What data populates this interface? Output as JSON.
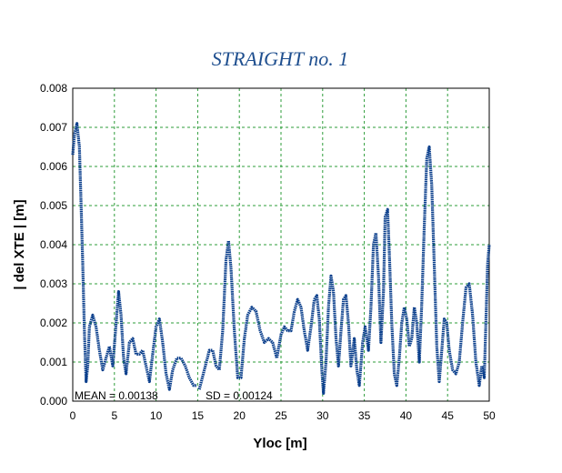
{
  "chart_data": {
    "type": "line",
    "title": "STRAIGHT no. 1",
    "xlabel": "Yloc [m]",
    "ylabel": "| del XTE | [m]",
    "xlim": [
      0,
      50
    ],
    "ylim": [
      0,
      0.008
    ],
    "x_ticks": [
      "0",
      "5",
      "10",
      "15",
      "20",
      "25",
      "30",
      "35",
      "40",
      "45",
      "50"
    ],
    "y_ticks": [
      "0.000",
      "0.001",
      "0.002",
      "0.003",
      "0.004",
      "0.005",
      "0.006",
      "0.007",
      "0.008"
    ],
    "grid": true,
    "line_color": "#0b3f8c",
    "grid_color": "#2e9c3a",
    "title_color": "#1f4f8f",
    "annotations": {
      "mean": "MEAN =  0.00138",
      "sd": "SD = 0.00124"
    },
    "series": [
      {
        "segments": [
          [
            [
              0.0,
              0.0063
            ],
            [
              0.2,
              0.0068
            ],
            [
              0.5,
              0.0071
            ],
            [
              0.8,
              0.0065
            ],
            [
              1.0,
              0.005
            ],
            [
              1.2,
              0.0035
            ],
            [
              1.4,
              0.0018
            ],
            [
              1.6,
              0.0005
            ],
            [
              1.8,
              0.0009
            ],
            [
              2.0,
              0.0019
            ],
            [
              2.4,
              0.0022
            ],
            [
              2.8,
              0.0019
            ],
            [
              3.2,
              0.0013
            ],
            [
              3.6,
              0.0008
            ],
            [
              4.0,
              0.0011
            ],
            [
              4.4,
              0.0014
            ],
            [
              4.8,
              0.0009
            ],
            [
              5.1,
              0.0017
            ],
            [
              5.5,
              0.0028
            ],
            [
              5.8,
              0.0022
            ],
            [
              6.1,
              0.0011
            ],
            [
              6.4,
              0.0007
            ],
            [
              6.8,
              0.0015
            ],
            [
              7.2,
              0.0016
            ],
            [
              7.6,
              0.0012
            ],
            [
              8.0,
              0.0012
            ],
            [
              8.4,
              0.0013
            ],
            [
              8.8,
              0.0009
            ],
            [
              9.2,
              0.0005
            ],
            [
              9.6,
              0.0012
            ],
            [
              10.0,
              0.0019
            ],
            [
              10.4,
              0.0021
            ],
            [
              10.8,
              0.0015
            ],
            [
              11.2,
              0.0007
            ],
            [
              11.6,
              0.0003
            ],
            [
              12.0,
              0.0008
            ],
            [
              12.5,
              0.0011
            ],
            [
              13.0,
              0.0011
            ],
            [
              13.5,
              0.0009
            ],
            [
              14.0,
              0.0006
            ],
            [
              14.5,
              0.0004
            ],
            [
              14.9,
              0.0004
            ]
          ],
          [
            [
              15.2,
              0.0003
            ],
            [
              15.8,
              0.0008
            ],
            [
              16.4,
              0.0013
            ],
            [
              16.8,
              0.0013
            ],
            [
              17.2,
              0.0009
            ],
            [
              17.6,
              0.0008
            ],
            [
              18.0,
              0.0018
            ],
            [
              18.4,
              0.0036
            ],
            [
              18.7,
              0.0041
            ],
            [
              19.0,
              0.0034
            ],
            [
              19.4,
              0.0018
            ],
            [
              19.8,
              0.0006
            ],
            [
              20.2,
              0.0006
            ],
            [
              20.6,
              0.0016
            ],
            [
              21.0,
              0.0022
            ],
            [
              21.5,
              0.0024
            ],
            [
              22.0,
              0.0023
            ],
            [
              22.5,
              0.0018
            ],
            [
              23.0,
              0.0015
            ],
            [
              23.5,
              0.0016
            ],
            [
              24.0,
              0.0015
            ],
            [
              24.5,
              0.0011
            ],
            [
              25.0,
              0.0017
            ],
            [
              25.4,
              0.0019
            ],
            [
              25.8,
              0.0018
            ],
            [
              26.2,
              0.0018
            ],
            [
              26.6,
              0.0023
            ],
            [
              27.0,
              0.0026
            ],
            [
              27.4,
              0.0024
            ],
            [
              27.8,
              0.0018
            ],
            [
              28.2,
              0.0013
            ],
            [
              28.6,
              0.0019
            ],
            [
              29.0,
              0.0026
            ],
            [
              29.3,
              0.0027
            ],
            [
              29.6,
              0.0021
            ],
            [
              29.9,
              0.0008
            ],
            [
              30.1,
              0.0002
            ],
            [
              30.4,
              0.001
            ],
            [
              30.7,
              0.0024
            ],
            [
              31.0,
              0.0032
            ],
            [
              31.3,
              0.0028
            ],
            [
              31.6,
              0.0016
            ],
            [
              31.9,
              0.0009
            ],
            [
              32.2,
              0.0018
            ],
            [
              32.5,
              0.0026
            ],
            [
              32.8,
              0.0027
            ],
            [
              33.1,
              0.002
            ],
            [
              33.4,
              0.0009
            ],
            [
              33.8,
              0.0016
            ],
            [
              34.1,
              0.0008
            ],
            [
              34.4,
              0.0004
            ],
            [
              34.8,
              0.0015
            ],
            [
              35.1,
              0.0019
            ],
            [
              35.5,
              0.0013
            ],
            [
              35.8,
              0.0024
            ],
            [
              36.1,
              0.004
            ],
            [
              36.4,
              0.0043
            ],
            [
              36.7,
              0.0032
            ],
            [
              37.0,
              0.0015
            ],
            [
              37.3,
              0.0028
            ],
            [
              37.5,
              0.0047
            ],
            [
              37.8,
              0.0049
            ],
            [
              38.0,
              0.0038
            ],
            [
              38.3,
              0.002
            ],
            [
              38.6,
              0.0007
            ],
            [
              38.9,
              0.0004
            ],
            [
              39.2,
              0.0011
            ],
            [
              39.5,
              0.002
            ],
            [
              39.8,
              0.0024
            ],
            [
              40.1,
              0.0021
            ],
            [
              40.4,
              0.0014
            ],
            [
              40.7,
              0.0016
            ],
            [
              41.0,
              0.0024
            ],
            [
              41.3,
              0.002
            ],
            [
              41.6,
              0.001
            ],
            [
              41.9,
              0.0025
            ],
            [
              42.2,
              0.0045
            ],
            [
              42.5,
              0.0062
            ],
            [
              42.8,
              0.0065
            ],
            [
              43.1,
              0.0055
            ],
            [
              43.4,
              0.0035
            ],
            [
              43.7,
              0.0014
            ],
            [
              44.0,
              0.0005
            ],
            [
              44.3,
              0.0013
            ],
            [
              44.6,
              0.0021
            ],
            [
              44.9,
              0.002
            ],
            [
              45.2,
              0.0013
            ],
            [
              45.6,
              0.0008
            ],
            [
              46.0,
              0.0007
            ],
            [
              46.4,
              0.001
            ],
            [
              46.8,
              0.002
            ],
            [
              47.2,
              0.0029
            ],
            [
              47.6,
              0.003
            ],
            [
              48.0,
              0.0022
            ],
            [
              48.4,
              0.001
            ],
            [
              48.8,
              0.0004
            ],
            [
              49.1,
              0.0009
            ],
            [
              49.4,
              0.0006
            ],
            [
              49.6,
              0.002
            ],
            [
              49.8,
              0.0035
            ],
            [
              50.0,
              0.004
            ]
          ]
        ]
      }
    ]
  }
}
